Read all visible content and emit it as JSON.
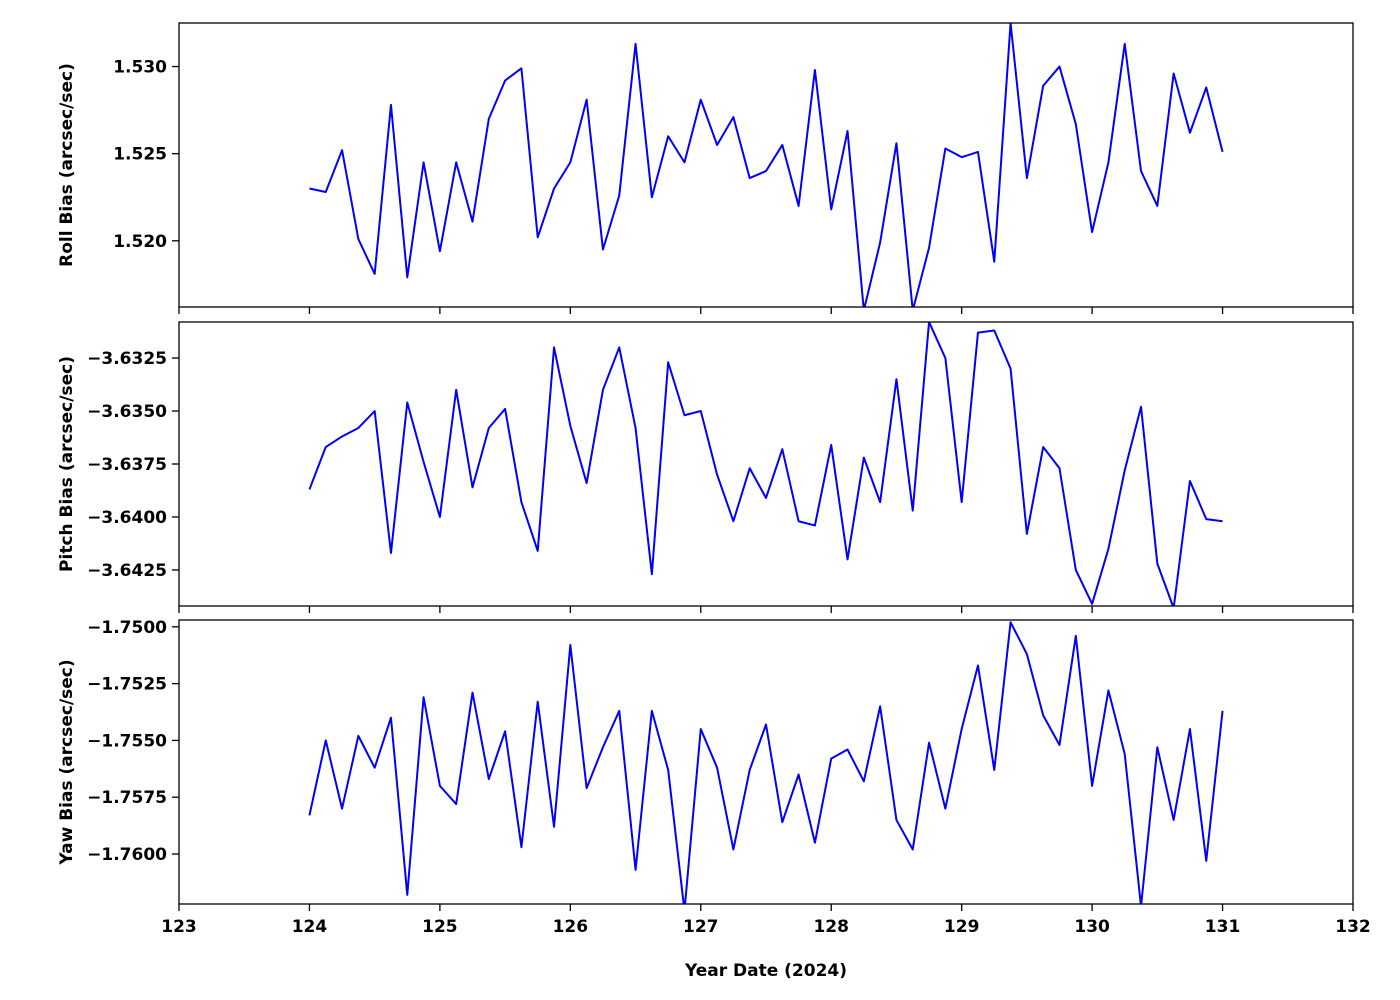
{
  "chart_data": [
    {
      "type": "line",
      "ylabel": "Roll Bias (arcsec/sec)",
      "x": [
        124,
        124.125,
        124.25,
        124.375,
        124.5,
        124.625,
        124.75,
        124.875,
        125,
        125.125,
        125.25,
        125.375,
        125.5,
        125.625,
        125.75,
        125.875,
        126,
        126.125,
        126.25,
        126.375,
        126.5,
        126.625,
        126.75,
        126.875,
        127,
        127.125,
        127.25,
        127.375,
        127.5,
        127.625,
        127.75,
        127.875,
        128,
        128.125,
        128.25,
        128.375,
        128.5,
        128.625,
        128.75,
        128.875,
        129,
        129.125,
        129.25,
        129.375,
        129.5,
        129.625,
        129.75,
        129.875,
        130,
        130.125,
        130.25,
        130.375,
        130.5,
        130.625,
        130.75,
        130.875,
        131
      ],
      "series": [
        {
          "color": "#0000ff",
          "values": [
            1.523,
            1.5228,
            1.5252,
            1.5201,
            1.5181,
            1.5278,
            1.5179,
            1.5245,
            1.5194,
            1.5245,
            1.5211,
            1.527,
            1.5292,
            1.5299,
            1.5202,
            1.523,
            1.5245,
            1.5281,
            1.5195,
            1.5226,
            1.5313,
            1.5225,
            1.526,
            1.5245,
            1.5281,
            1.5255,
            1.5271,
            1.5236,
            1.524,
            1.5255,
            1.522,
            1.5298,
            1.5218,
            1.5263,
            1.516,
            1.5199,
            1.5256,
            1.516,
            1.5196,
            1.5253,
            1.5248,
            1.5251,
            1.5188,
            1.5325,
            1.5236,
            1.5289,
            1.53,
            1.5267,
            1.5205,
            1.5245,
            1.5313,
            1.524,
            1.522,
            1.5296,
            1.5262,
            1.5288,
            1.5251
          ]
        }
      ],
      "xlim": [
        123,
        132
      ],
      "xticks": [
        123,
        124,
        125,
        126,
        127,
        128,
        129,
        130,
        131,
        132
      ],
      "ylim": [
        1.5162,
        1.5325
      ],
      "yticks": [
        {
          "value": 1.52,
          "label": "1.520"
        },
        {
          "value": 1.525,
          "label": "1.525"
        },
        {
          "value": 1.53,
          "label": "1.530"
        }
      ]
    },
    {
      "type": "line",
      "ylabel": "Pitch Bias (arcsec/sec)",
      "x": [
        124,
        124.125,
        124.25,
        124.375,
        124.5,
        124.625,
        124.75,
        124.875,
        125,
        125.125,
        125.25,
        125.375,
        125.5,
        125.625,
        125.75,
        125.875,
        126,
        126.125,
        126.25,
        126.375,
        126.5,
        126.625,
        126.75,
        126.875,
        127,
        127.125,
        127.25,
        127.375,
        127.5,
        127.625,
        127.75,
        127.875,
        128,
        128.125,
        128.25,
        128.375,
        128.5,
        128.625,
        128.75,
        128.875,
        129,
        129.125,
        129.25,
        129.375,
        129.5,
        129.625,
        129.75,
        129.875,
        130,
        130.125,
        130.25,
        130.375,
        130.5,
        130.625,
        130.75,
        130.875,
        131
      ],
      "series": [
        {
          "color": "#0000ff",
          "values": [
            -3.6387,
            -3.6367,
            -3.6362,
            -3.6358,
            -3.635,
            -3.6417,
            -3.6346,
            -3.6374,
            -3.64,
            -3.634,
            -3.6386,
            -3.6358,
            -3.6349,
            -3.6393,
            -3.6416,
            -3.632,
            -3.6357,
            -3.6384,
            -3.634,
            -3.632,
            -3.6358,
            -3.6427,
            -3.6327,
            -3.6352,
            -3.635,
            -3.638,
            -3.6402,
            -3.6377,
            -3.6391,
            -3.6368,
            -3.6402,
            -3.6404,
            -3.6366,
            -3.642,
            -3.6372,
            -3.6393,
            -3.6335,
            -3.6397,
            -3.6308,
            -3.6325,
            -3.6393,
            -3.6313,
            -3.6312,
            -3.633,
            -3.6408,
            -3.6367,
            -3.6377,
            -3.6425,
            -3.6441,
            -3.6415,
            -3.6378,
            -3.6348,
            -3.6422,
            -3.6443,
            -3.6383,
            -3.6401,
            -3.6402
          ]
        }
      ],
      "xlim": [
        123,
        132
      ],
      "xticks": [
        123,
        124,
        125,
        126,
        127,
        128,
        129,
        130,
        131,
        132
      ],
      "ylim": [
        -3.6442,
        -3.6308
      ],
      "yticks": [
        {
          "value": -3.6425,
          "label": "−3.6425"
        },
        {
          "value": -3.64,
          "label": "−3.6400"
        },
        {
          "value": -3.6375,
          "label": "−3.6375"
        },
        {
          "value": -3.635,
          "label": "−3.6350"
        },
        {
          "value": -3.6325,
          "label": "−3.6325"
        }
      ]
    },
    {
      "type": "line",
      "ylabel": "Yaw Bias (arcsec/sec)",
      "xlabel": "Year Date (2024)",
      "x": [
        124,
        124.125,
        124.25,
        124.375,
        124.5,
        124.625,
        124.75,
        124.875,
        125,
        125.125,
        125.25,
        125.375,
        125.5,
        125.625,
        125.75,
        125.875,
        126,
        126.125,
        126.25,
        126.375,
        126.5,
        126.625,
        126.75,
        126.875,
        127,
        127.125,
        127.25,
        127.375,
        127.5,
        127.625,
        127.75,
        127.875,
        128,
        128.125,
        128.25,
        128.375,
        128.5,
        128.625,
        128.75,
        128.875,
        129,
        129.125,
        129.25,
        129.375,
        129.5,
        129.625,
        129.75,
        129.875,
        130,
        130.125,
        130.25,
        130.375,
        130.5,
        130.625,
        130.75,
        130.875,
        131
      ],
      "series": [
        {
          "color": "#0000ff",
          "values": [
            -1.7583,
            -1.755,
            -1.758,
            -1.7548,
            -1.7562,
            -1.754,
            -1.7618,
            -1.7531,
            -1.757,
            -1.7578,
            -1.7529,
            -1.7567,
            -1.7546,
            -1.7597,
            -1.7533,
            -1.7588,
            -1.7508,
            -1.7571,
            -1.7553,
            -1.7537,
            -1.7607,
            -1.7537,
            -1.7563,
            -1.7625,
            -1.7545,
            -1.7562,
            -1.7598,
            -1.7563,
            -1.7543,
            -1.7586,
            -1.7565,
            -1.7595,
            -1.7558,
            -1.7554,
            -1.7568,
            -1.7535,
            -1.7585,
            -1.7598,
            -1.7551,
            -1.758,
            -1.7545,
            -1.7517,
            -1.7563,
            -1.7498,
            -1.7512,
            -1.7539,
            -1.7552,
            -1.7504,
            -1.757,
            -1.7528,
            -1.7556,
            -1.7623,
            -1.7553,
            -1.7585,
            -1.7545,
            -1.7603,
            -1.7537
          ]
        }
      ],
      "xlim": [
        123,
        132
      ],
      "xticks": [
        123,
        124,
        125,
        126,
        127,
        128,
        129,
        130,
        131,
        132
      ],
      "ylim": [
        -1.7622,
        -1.7497
      ],
      "yticks": [
        {
          "value": -1.76,
          "label": "−1.7600"
        },
        {
          "value": -1.7575,
          "label": "−1.7575"
        },
        {
          "value": -1.755,
          "label": "−1.7550"
        },
        {
          "value": -1.7525,
          "label": "−1.7525"
        },
        {
          "value": -1.75,
          "label": "−1.7500"
        }
      ]
    }
  ]
}
